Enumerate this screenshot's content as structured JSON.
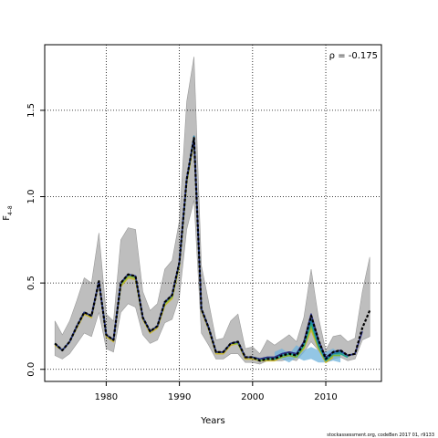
{
  "chart_data": {
    "type": "line",
    "xlabel": "Years",
    "ylabel_main": "F",
    "ylabel_sub": "4–8",
    "annotation": "ρ = -0.175",
    "footer": "stockassessment.org, codeBen 2017 01, r9133",
    "xlim": [
      1971.6,
      2017.6
    ],
    "ylim": [
      -0.07,
      1.88
    ],
    "xticks": [
      1980,
      1990,
      2000,
      2010
    ],
    "yticks": [
      0.0,
      0.5,
      1.0,
      1.5
    ],
    "xtick_labels": [
      "1980",
      "1990",
      "2000",
      "2010"
    ],
    "ytick_labels": [
      "0.0",
      "0.5",
      "1.0",
      "1.5"
    ],
    "grid": true,
    "grid_style": "dotted",
    "years": [
      1973,
      1974,
      1975,
      1976,
      1977,
      1978,
      1979,
      1980,
      1981,
      1982,
      1983,
      1984,
      1985,
      1986,
      1987,
      1988,
      1989,
      1990,
      1991,
      1992,
      1993,
      1994,
      1995,
      1996,
      1997,
      1998,
      1999,
      2000,
      2001,
      2002,
      2003,
      2004,
      2005,
      2006,
      2007,
      2008,
      2009,
      2010,
      2011,
      2012,
      2013,
      2014,
      2015,
      2016
    ],
    "band_upper": [
      0.28,
      0.2,
      0.28,
      0.4,
      0.53,
      0.5,
      0.79,
      0.32,
      0.28,
      0.75,
      0.82,
      0.81,
      0.45,
      0.34,
      0.38,
      0.58,
      0.63,
      0.86,
      1.55,
      1.81,
      0.6,
      0.39,
      0.17,
      0.18,
      0.28,
      0.32,
      0.12,
      0.13,
      0.09,
      0.17,
      0.14,
      0.17,
      0.2,
      0.16,
      0.3,
      0.58,
      0.3,
      0.11,
      0.19,
      0.2,
      0.16,
      0.18,
      0.45,
      0.65
    ],
    "band_lower": [
      0.08,
      0.06,
      0.09,
      0.15,
      0.21,
      0.19,
      0.33,
      0.12,
      0.1,
      0.33,
      0.38,
      0.36,
      0.2,
      0.15,
      0.17,
      0.27,
      0.29,
      0.42,
      0.81,
      0.98,
      0.21,
      0.14,
      0.06,
      0.06,
      0.09,
      0.09,
      0.04,
      0.04,
      0.03,
      0.05,
      0.05,
      0.05,
      0.06,
      0.05,
      0.1,
      0.16,
      0.11,
      0.04,
      0.06,
      0.07,
      0.05,
      0.06,
      0.17,
      0.19
    ],
    "series": [
      {
        "color": "#000000",
        "width": 2.2,
        "dash": "3,2",
        "values": [
          0.15,
          0.11,
          0.16,
          0.25,
          0.33,
          0.31,
          0.51,
          0.2,
          0.17,
          0.5,
          0.55,
          0.54,
          0.3,
          0.22,
          0.25,
          0.39,
          0.43,
          0.62,
          1.1,
          1.34,
          0.35,
          0.24,
          0.1,
          0.1,
          0.15,
          0.16,
          0.07,
          0.07,
          0.05,
          0.06,
          0.06,
          0.08,
          0.09,
          0.08,
          0.15,
          0.31,
          0.17,
          0.06,
          0.1,
          0.11,
          0.08,
          0.09,
          0.24,
          0.34
        ]
      },
      {
        "color": "#2c2f86",
        "width": 1.6,
        "dash": "",
        "values": [
          0.15,
          0.11,
          0.16,
          0.25,
          0.33,
          0.31,
          0.51,
          0.2,
          0.17,
          0.5,
          0.55,
          0.54,
          0.3,
          0.22,
          0.25,
          0.39,
          0.43,
          0.62,
          1.1,
          1.34,
          0.35,
          0.24,
          0.1,
          0.1,
          0.15,
          0.16,
          0.07,
          0.07,
          0.06,
          0.07,
          0.07,
          0.09,
          0.1,
          0.09,
          0.16,
          0.32,
          0.17,
          0.07,
          0.1,
          0.11,
          0.08,
          0.09,
          0.22
        ]
      },
      {
        "color": "#1f7ea6",
        "width": 1.6,
        "dash": "",
        "values": [
          0.15,
          0.11,
          0.16,
          0.25,
          0.33,
          0.31,
          0.51,
          0.2,
          0.17,
          0.5,
          0.55,
          0.54,
          0.3,
          0.22,
          0.25,
          0.39,
          0.43,
          0.62,
          1.1,
          1.35,
          0.35,
          0.24,
          0.1,
          0.1,
          0.15,
          0.16,
          0.07,
          0.07,
          0.06,
          0.07,
          0.07,
          0.09,
          0.1,
          0.09,
          0.15,
          0.29,
          0.15,
          0.06,
          0.09,
          0.1,
          0.08,
          0.09
        ]
      },
      {
        "color": "#22a58f",
        "width": 1.6,
        "dash": "",
        "values": [
          0.15,
          0.11,
          0.16,
          0.25,
          0.33,
          0.31,
          0.51,
          0.2,
          0.17,
          0.5,
          0.55,
          0.54,
          0.3,
          0.22,
          0.25,
          0.39,
          0.43,
          0.62,
          1.1,
          1.34,
          0.35,
          0.24,
          0.1,
          0.1,
          0.15,
          0.16,
          0.07,
          0.07,
          0.06,
          0.06,
          0.06,
          0.08,
          0.09,
          0.08,
          0.14,
          0.27,
          0.14,
          0.05,
          0.09,
          0.09,
          0.07
        ]
      },
      {
        "color": "#7ab53a",
        "width": 1.6,
        "dash": "",
        "values": [
          0.15,
          0.11,
          0.16,
          0.25,
          0.33,
          0.31,
          0.51,
          0.2,
          0.17,
          0.49,
          0.54,
          0.53,
          0.3,
          0.22,
          0.25,
          0.38,
          0.42,
          0.61,
          1.09,
          1.33,
          0.35,
          0.24,
          0.1,
          0.1,
          0.15,
          0.15,
          0.07,
          0.07,
          0.05,
          0.06,
          0.06,
          0.07,
          0.08,
          0.07,
          0.13,
          0.25,
          0.13,
          0.05,
          0.08,
          0.08
        ]
      },
      {
        "color": "#c8b634",
        "width": 1.6,
        "dash": "",
        "values": [
          0.14,
          0.11,
          0.16,
          0.24,
          0.32,
          0.3,
          0.5,
          0.19,
          0.16,
          0.48,
          0.53,
          0.52,
          0.29,
          0.21,
          0.24,
          0.37,
          0.41,
          0.6,
          1.08,
          1.32,
          0.34,
          0.23,
          0.09,
          0.09,
          0.14,
          0.15,
          0.06,
          0.06,
          0.05,
          0.05,
          0.05,
          0.07,
          0.08,
          0.07,
          0.12,
          0.23,
          0.12,
          0.04,
          0.07
        ]
      }
    ],
    "peel_band": {
      "color": "#6fb3dc",
      "upper": [
        0.1,
        0.12,
        0.09,
        0.14,
        0.11,
        0.13,
        0.11,
        0.1,
        0.12,
        0.09
      ],
      "lower": [
        0.05,
        0.06,
        0.04,
        0.07,
        0.05,
        0.06,
        0.04,
        0.04,
        0.05,
        0.04
      ],
      "start_year": 2003
    }
  }
}
